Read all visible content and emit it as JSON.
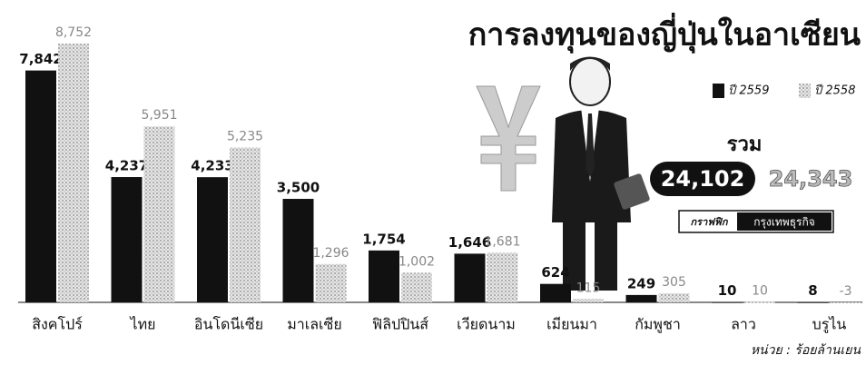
{
  "chart_data": {
    "type": "bar",
    "title": "การลงทุนของญี่ปุ่นในอาเซียน",
    "categories": [
      "สิงคโปร์",
      "ไทย",
      "อินโดนีเซีย",
      "มาเลเซีย",
      "ฟิลิปปินส์",
      "เวียดนาม",
      "เมียนมา",
      "กัมพูชา",
      "ลาว",
      "บรูไน"
    ],
    "series": [
      {
        "name": "ปี 2559",
        "color": "#111111",
        "values": [
          7842,
          4237,
          4233,
          3500,
          1754,
          1646,
          624,
          249,
          10,
          8
        ],
        "value_labels": [
          "7,842",
          "4,237",
          "4,233",
          "3,500",
          "1,754",
          "1,646",
          "624",
          "249",
          "10",
          "8"
        ]
      },
      {
        "name": "ปี 2558",
        "color": "#c8c8c8",
        "values": [
          8752,
          5951,
          5235,
          1296,
          1002,
          1681,
          115,
          305,
          10,
          -3
        ],
        "value_labels": [
          "8,752",
          "5,951",
          "5,235",
          "1,296",
          "1,002",
          "1,681",
          "115",
          "305",
          "10",
          "-3"
        ]
      }
    ],
    "totals": {
      "label": "รวม",
      "values": [
        24102,
        24343
      ],
      "value_labels": [
        "24,102",
        "24,343"
      ]
    },
    "credit": [
      "กราฟฟิก",
      "กรุงเทพธุรกิจ"
    ],
    "unit": "หน่วย : ร้อยล้านเยน",
    "legend": "top-right"
  }
}
